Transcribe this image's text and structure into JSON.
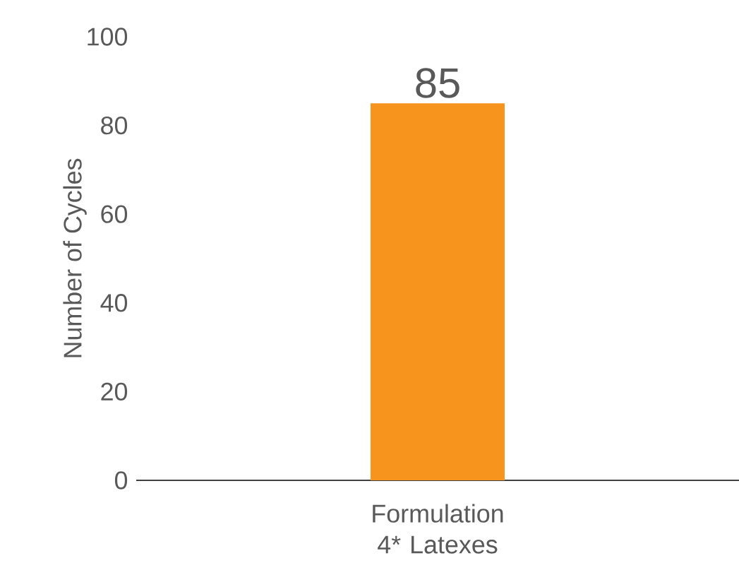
{
  "chart_data": {
    "type": "bar",
    "categories": [
      "Formulation 4* Latexes"
    ],
    "values": [
      85
    ],
    "value_labels": [
      "85"
    ],
    "color": "#f7941d",
    "ylabel": "Number of Cycles",
    "ylim": [
      0,
      100
    ],
    "yticks": [
      0,
      20,
      40,
      60,
      80,
      100
    ],
    "grid": false
  }
}
